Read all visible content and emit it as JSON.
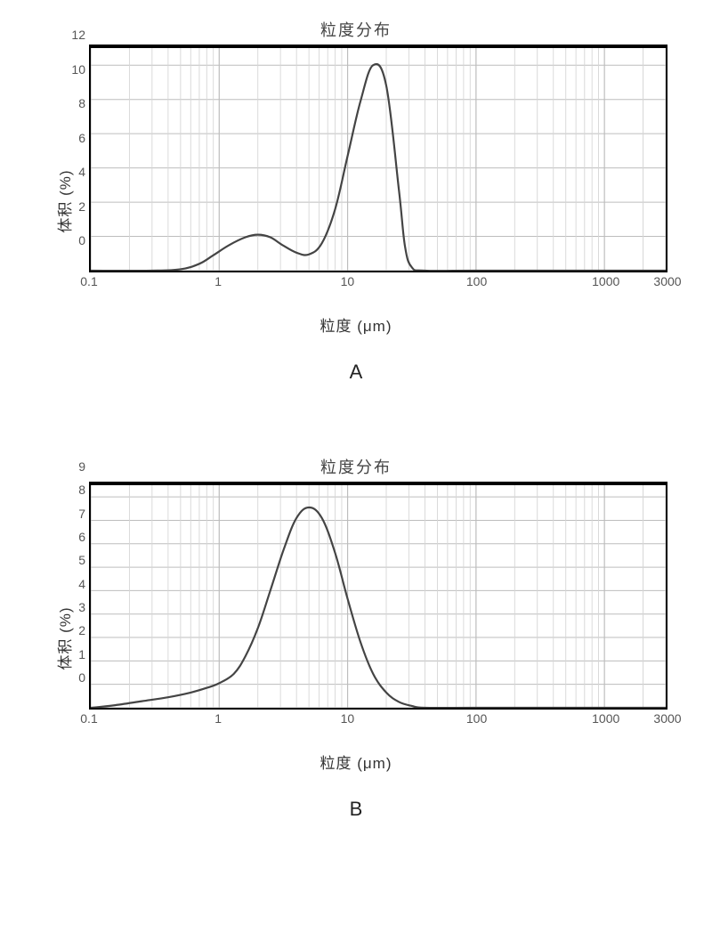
{
  "figure": {
    "panelA": {
      "title": "粒度分布",
      "ylabel": "体积 (%)",
      "xlabel": "粒度 (μm)",
      "letter": "A",
      "type": "line",
      "xscale": "log",
      "xlim": [
        0.1,
        3000
      ],
      "xticks": [
        0.1,
        1,
        10,
        100,
        1000,
        3000
      ],
      "xtick_labels": [
        "0.1",
        "1",
        "10",
        "100",
        "1000",
        "3000"
      ],
      "ylim": [
        0,
        13
      ],
      "yticks": [
        0,
        2,
        4,
        6,
        8,
        10,
        12
      ],
      "ytick_labels": [
        "0",
        "2",
        "4",
        "6",
        "8",
        "10",
        "12"
      ],
      "grid_color": "#bdbdbd",
      "minor_grid_color": "#d6d6d6",
      "background_color": "#ffffff",
      "border_color": "#000000",
      "line_color": "#444444",
      "line_width": 2.2,
      "title_fontsize": 18,
      "label_fontsize": 17,
      "tick_fontsize": 14,
      "data": {
        "x": [
          0.1,
          0.3,
          0.5,
          0.7,
          0.9,
          1.2,
          1.6,
          2.0,
          2.5,
          3.1,
          4.0,
          5.0,
          6.3,
          8.0,
          10.0,
          12.6,
          15.8,
          20.0,
          25.1,
          28.0,
          31.6,
          40.0,
          100,
          3000
        ],
        "y": [
          0,
          0,
          0.08,
          0.4,
          0.9,
          1.5,
          1.95,
          2.1,
          1.95,
          1.5,
          1.05,
          0.95,
          1.6,
          3.6,
          6.7,
          9.9,
          12.0,
          10.8,
          4.7,
          1.4,
          0.2,
          0,
          0,
          0
        ]
      }
    },
    "panelB": {
      "title": "粒度分布",
      "ylabel": "体积 (%)",
      "xlabel": "粒度 (μm)",
      "letter": "B",
      "type": "line",
      "xscale": "log",
      "xlim": [
        0.1,
        3000
      ],
      "xticks": [
        0.1,
        1,
        10,
        100,
        1000,
        3000
      ],
      "xtick_labels": [
        "0.1",
        "1",
        "10",
        "100",
        "1000",
        "3000"
      ],
      "ylim": [
        0,
        9.5
      ],
      "yticks": [
        0,
        1,
        2,
        3,
        4,
        5,
        6,
        7,
        8,
        9
      ],
      "ytick_labels": [
        "0",
        "1",
        "2",
        "3",
        "4",
        "5",
        "6",
        "7",
        "8",
        "9"
      ],
      "grid_color": "#bdbdbd",
      "minor_grid_color": "#d6d6d6",
      "background_color": "#ffffff",
      "border_color": "#000000",
      "line_color": "#444444",
      "line_width": 2.2,
      "title_fontsize": 18,
      "label_fontsize": 17,
      "tick_fontsize": 14,
      "data": {
        "x": [
          0.1,
          0.15,
          0.25,
          0.4,
          0.6,
          0.8,
          1.0,
          1.3,
          1.6,
          2.0,
          2.5,
          3.2,
          4.0,
          5.0,
          6.3,
          8.0,
          10.0,
          12.6,
          15.8,
          20.0,
          25.1,
          31.6,
          40.0,
          100,
          3000
        ],
        "y": [
          0,
          0.1,
          0.28,
          0.45,
          0.65,
          0.85,
          1.05,
          1.45,
          2.2,
          3.4,
          5.0,
          6.8,
          8.1,
          8.55,
          8.1,
          6.6,
          4.65,
          2.8,
          1.45,
          0.65,
          0.25,
          0.08,
          0,
          0,
          0
        ]
      }
    }
  }
}
